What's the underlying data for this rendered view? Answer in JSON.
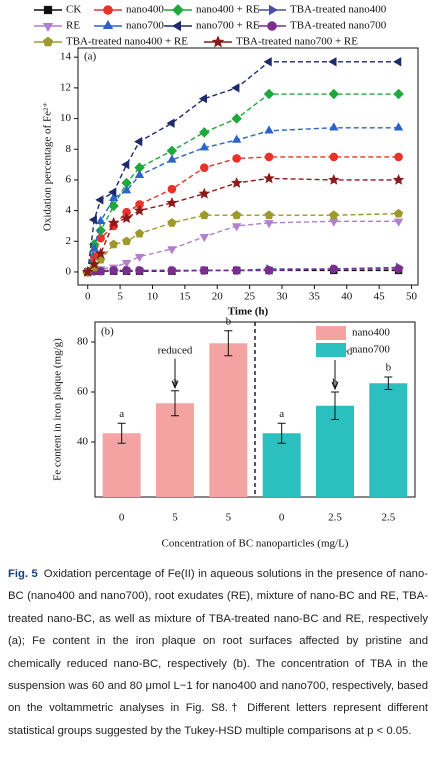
{
  "chart_data": [
    {
      "type": "line",
      "panel": "(a)",
      "xlabel": "Time (h)",
      "ylabel": "Oxidation percentage of Fe²⁺",
      "x": [
        0,
        1,
        2,
        4,
        6,
        8,
        13,
        18,
        23,
        28,
        38,
        48
      ],
      "xlim": [
        -1.5,
        51
      ],
      "xticks": [
        0,
        5,
        10,
        15,
        20,
        25,
        30,
        35,
        40,
        45,
        50
      ],
      "ylim": [
        -0.85,
        14.6
      ],
      "yticks": [
        0,
        2,
        4,
        6,
        8,
        10,
        12,
        14
      ],
      "series": [
        {
          "name": "CK",
          "color": "#111111",
          "marker": "square",
          "values": [
            0,
            0.05,
            0.05,
            0.05,
            0.05,
            0.05,
            0.05,
            0.1,
            0.1,
            0.1,
            0.1,
            0.1
          ]
        },
        {
          "name": "nano400",
          "color": "#e8332a",
          "marker": "circle",
          "values": [
            0,
            1.0,
            2.2,
            3.0,
            3.9,
            4.4,
            5.4,
            6.8,
            7.4,
            7.5,
            7.5,
            7.5
          ]
        },
        {
          "name": "nano400 + RE",
          "color": "#1fa83c",
          "marker": "diamond",
          "values": [
            0,
            1.8,
            2.7,
            4.3,
            5.8,
            6.8,
            7.9,
            9.1,
            10.0,
            11.6,
            11.6,
            11.6
          ]
        },
        {
          "name": "TBA-treated nano400",
          "color": "#4b4fa8",
          "marker": "triangle-right",
          "values": [
            0,
            0.1,
            0.1,
            0.1,
            0.1,
            0.1,
            0.1,
            0.1,
            0.1,
            0.2,
            0.2,
            0.3
          ]
        },
        {
          "name": "RE",
          "color": "#b27fd0",
          "marker": "triangle-down",
          "values": [
            0,
            0.1,
            0.2,
            0.3,
            0.6,
            1.0,
            1.5,
            2.3,
            3.0,
            3.2,
            3.3,
            3.3
          ]
        },
        {
          "name": "nano700",
          "color": "#2a64c8",
          "marker": "triangle-up",
          "values": [
            0,
            1.5,
            3.3,
            4.8,
            5.3,
            6.3,
            7.3,
            8.1,
            8.6,
            9.2,
            9.4,
            9.4
          ]
        },
        {
          "name": "nano700 + RE",
          "color": "#1f2a6b",
          "marker": "triangle-left",
          "values": [
            0,
            3.4,
            4.7,
            5.2,
            7.0,
            8.5,
            9.7,
            11.3,
            12.0,
            13.7,
            13.7,
            13.7
          ]
        },
        {
          "name": "TBA-treated nano700",
          "color": "#7a2f8f",
          "marker": "circle",
          "values": [
            0,
            0.05,
            0.05,
            0.1,
            0.1,
            0.1,
            0.1,
            0.1,
            0.1,
            0.1,
            0.2,
            0.2
          ]
        },
        {
          "name": "TBA-treated nano400 + RE",
          "color": "#9c9a2a",
          "marker": "pentagon",
          "values": [
            0,
            0.3,
            0.8,
            1.8,
            2.0,
            2.5,
            3.2,
            3.7,
            3.7,
            3.7,
            3.7,
            3.8
          ]
        },
        {
          "name": "TBA-treated nano700 + RE",
          "color": "#8b1a1a",
          "marker": "star",
          "values": [
            0,
            0.5,
            1.2,
            3.2,
            3.5,
            4.0,
            4.5,
            5.1,
            5.8,
            6.1,
            6.0,
            6.0
          ]
        }
      ]
    },
    {
      "type": "bar",
      "panel": "(b)",
      "xlabel": "Concentration of BC nanoparticles (mg/L)",
      "ylabel": "Fe content in iron plaque (mg/g)",
      "categories": [
        "0",
        "5",
        "5",
        "0",
        "2.5",
        "2.5"
      ],
      "ylim": [
        18,
        88
      ],
      "yticks": [
        40,
        60,
        80
      ],
      "series": [
        {
          "name": "nano400",
          "color": "#f4a3a3",
          "values": [
            43.5,
            55.5,
            79.5,
            null,
            null,
            null
          ],
          "errors": [
            4,
            5,
            5,
            null,
            null,
            null
          ],
          "letters": [
            "a",
            "a",
            "b",
            null,
            null,
            null
          ]
        },
        {
          "name": "nano700",
          "color": "#2bbfc0",
          "values": [
            null,
            null,
            null,
            43.5,
            54.5,
            63.5
          ],
          "errors": [
            null,
            null,
            null,
            4,
            5.5,
            2.5
          ],
          "letters": [
            null,
            null,
            null,
            "a",
            "b",
            "b"
          ]
        }
      ],
      "annotations": [
        "reduced",
        "reduced"
      ]
    }
  ],
  "caption": {
    "label": "Fig. 5",
    "text": "Oxidation percentage of Fe(II) in aqueous solutions in the presence of nano-BC (nano400 and nano700), root exudates (RE), mixture of nano-BC and RE, TBA-treated nano-BC, as well as mixture of TBA-treated nano-BC and RE, respectively (a); Fe content in the iron plaque on root surfaces affected by pristine and chemically reduced nano-BC, respectively (b). The concentration of TBA in the suspension was 60 and 80 μmol L−1 for nano400 and nano700, respectively, based on the voltammetric analyses in Fig. S8.† Different letters represent different statistical groups suggested by the Tukey-HSD multiple comparisons at p < 0.05."
  }
}
